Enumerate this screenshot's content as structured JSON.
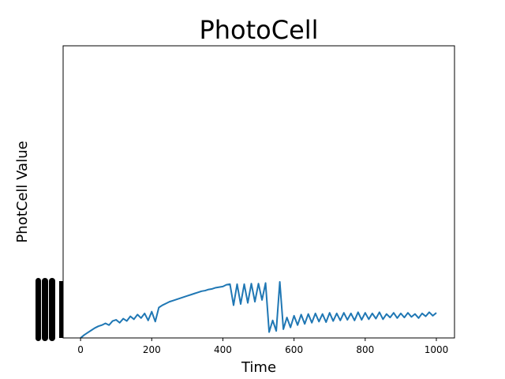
{
  "chart_data": {
    "type": "line",
    "title": "PhotoCell",
    "xlabel": "Time",
    "ylabel": "PhotCell Value",
    "xlim": [
      -49,
      1051
    ],
    "ylim": [
      0,
      500
    ],
    "xticks": [
      0,
      200,
      400,
      600,
      800,
      1000
    ],
    "xtick_labels": [
      "0",
      "200",
      "400",
      "600",
      "800",
      "1000"
    ],
    "grid": false,
    "line_color": "#1f77b4",
    "series": [
      {
        "name": "PhotoCell",
        "x": [
          0,
          10,
          20,
          30,
          40,
          50,
          60,
          70,
          80,
          90,
          100,
          110,
          120,
          130,
          140,
          150,
          160,
          170,
          180,
          190,
          200,
          210,
          220,
          230,
          240,
          250,
          260,
          270,
          280,
          290,
          300,
          310,
          320,
          330,
          340,
          350,
          360,
          370,
          380,
          390,
          400,
          410,
          420,
          430,
          440,
          450,
          460,
          470,
          480,
          490,
          500,
          510,
          520,
          530,
          540,
          550,
          560,
          570,
          580,
          590,
          600,
          610,
          620,
          630,
          640,
          650,
          660,
          670,
          680,
          690,
          700,
          710,
          720,
          730,
          740,
          750,
          760,
          770,
          780,
          790,
          800,
          810,
          820,
          830,
          840,
          850,
          860,
          870,
          880,
          890,
          900,
          910,
          920,
          930,
          940,
          950,
          960,
          970,
          980,
          990,
          1000
        ],
        "y": [
          0,
          5,
          9,
          13,
          17,
          20,
          22,
          25,
          22,
          29,
          31,
          26,
          33,
          29,
          37,
          32,
          40,
          34,
          42,
          30,
          45,
          28,
          52,
          56,
          59,
          62,
          64,
          66,
          68,
          70,
          72,
          74,
          76,
          78,
          80,
          81,
          83,
          84,
          86,
          87,
          88,
          91,
          92,
          56,
          92,
          58,
          92,
          60,
          93,
          62,
          93,
          65,
          94,
          10,
          30,
          12,
          96,
          15,
          35,
          18,
          38,
          22,
          40,
          24,
          41,
          26,
          42,
          28,
          41,
          27,
          43,
          29,
          42,
          30,
          43,
          31,
          42,
          30,
          44,
          31,
          43,
          32,
          42,
          33,
          44,
          32,
          41,
          35,
          43,
          34,
          42,
          35,
          43,
          36,
          41,
          34,
          42,
          37,
          44,
          38,
          43
        ]
      }
    ]
  }
}
